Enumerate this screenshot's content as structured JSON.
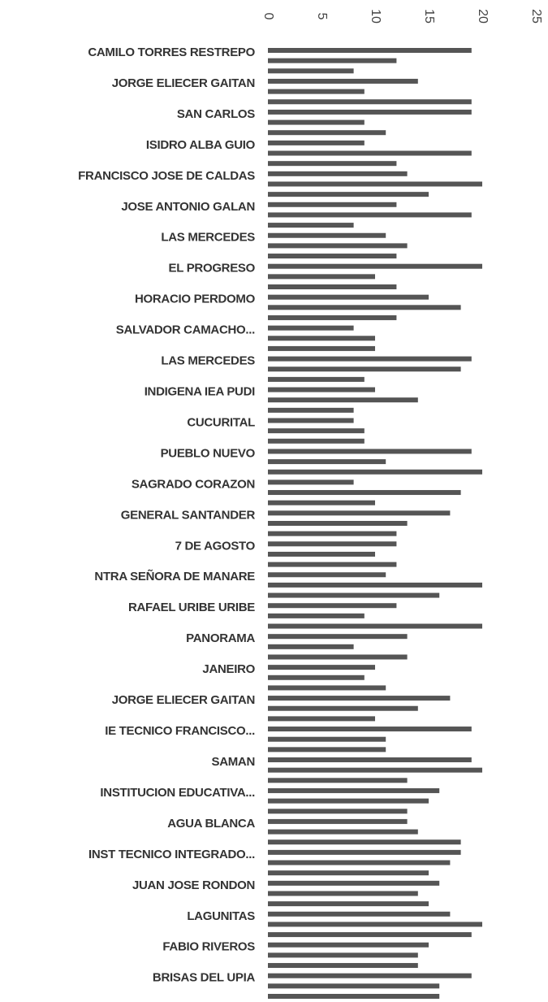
{
  "chart_data": {
    "type": "barh",
    "categories": [
      "CAMILO TORRES RESTREPO",
      null,
      null,
      "JORGE ELIECER GAITAN",
      null,
      null,
      "SAN CARLOS",
      null,
      null,
      "ISIDRO ALBA GUIO",
      null,
      null,
      "FRANCISCO JOSE DE CALDAS",
      null,
      null,
      "JOSE ANTONIO GALAN",
      null,
      null,
      "LAS MERCEDES",
      null,
      null,
      "EL PROGRESO",
      null,
      null,
      "HORACIO PERDOMO",
      null,
      null,
      "SALVADOR CAMACHO...",
      null,
      null,
      "LAS MERCEDES",
      null,
      null,
      "INDIGENA IEA PUDI",
      null,
      null,
      "CUCURITAL",
      null,
      null,
      "PUEBLO NUEVO",
      null,
      null,
      "SAGRADO CORAZON",
      null,
      null,
      "GENERAL SANTANDER",
      null,
      null,
      "7 DE AGOSTO",
      null,
      null,
      "NTRA SEÑORA DE MANARE",
      null,
      null,
      "RAFAEL URIBE URIBE",
      null,
      null,
      "PANORAMA",
      null,
      null,
      "JANEIRO",
      null,
      null,
      "JORGE ELIECER GAITAN",
      null,
      null,
      "IE TECNICO FRANCISCO...",
      null,
      null,
      "SAMAN",
      null,
      null,
      "INSTITUCION EDUCATIVA...",
      null,
      null,
      "AGUA BLANCA",
      null,
      null,
      "INST TECNICO INTEGRADO...",
      null,
      null,
      "JUAN JOSE RONDON",
      null,
      null,
      "LAGUNITAS",
      null,
      null,
      "FABIO RIVEROS",
      null,
      null,
      "BRISAS DEL UPIA",
      null,
      null
    ],
    "values": [
      19,
      12,
      8,
      14,
      9,
      19,
      19,
      9,
      11,
      9,
      19,
      12,
      13,
      20,
      15,
      12,
      19,
      8,
      11,
      13,
      12,
      20,
      10,
      12,
      15,
      18,
      12,
      8,
      10,
      10,
      19,
      18,
      9,
      10,
      14,
      8,
      8,
      9,
      9,
      19,
      11,
      20,
      8,
      18,
      10,
      17,
      13,
      12,
      12,
      10,
      12,
      11,
      20,
      16,
      12,
      9,
      20,
      13,
      8,
      13,
      10,
      9,
      11,
      17,
      14,
      10,
      19,
      11,
      11,
      19,
      20,
      13,
      16,
      15,
      13,
      13,
      14,
      18,
      18,
      17,
      15,
      16,
      14,
      15,
      17,
      20,
      19,
      15,
      14,
      14,
      19,
      16,
      16
    ],
    "color": "#555555",
    "xlim": [
      0,
      25
    ],
    "xticks": [
      0,
      5,
      10,
      15,
      20,
      25
    ],
    "grid": false
  }
}
